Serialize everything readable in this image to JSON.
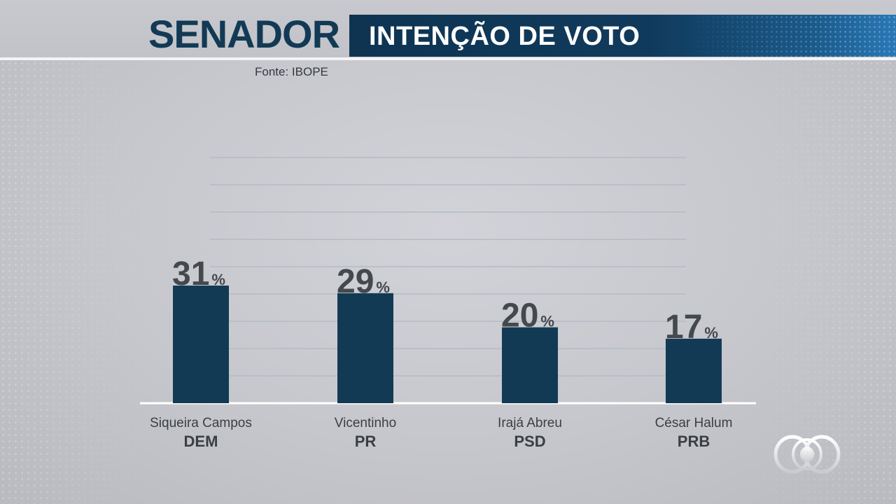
{
  "header": {
    "title": "SENADOR",
    "subtitle": "INTENÇÃO DE VOTO"
  },
  "source": "Fonte: IBOPE",
  "colors": {
    "bar": "#123a55",
    "label": "#3a3f44",
    "value": "#44494e",
    "gridline": "#b4bcc4",
    "baseline": "#ffffff"
  },
  "icons": {
    "logo": "tv-globo-logo"
  },
  "chart_data": {
    "type": "bar",
    "title": "",
    "xlabel": "",
    "ylabel": "",
    "ylim": [
      0,
      50
    ],
    "grid": true,
    "value_suffix": "%",
    "categories": [
      "Siqueira Campos",
      "Vicentinho",
      "Irajá Abreu",
      "César Halum"
    ],
    "parties": [
      "DEM",
      "PR",
      "PSD",
      "PRB"
    ],
    "values": [
      31,
      29,
      20,
      17
    ]
  }
}
